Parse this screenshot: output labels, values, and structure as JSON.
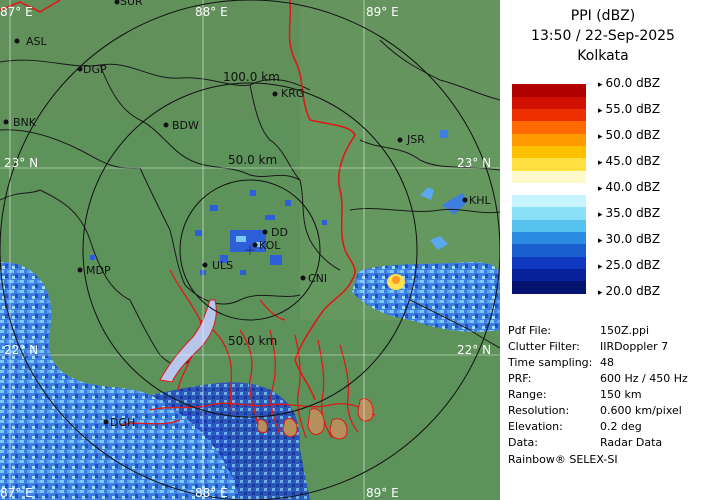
{
  "panel": {
    "title_line1": "PPI (dBZ)",
    "title_line2": "13:50 / 22-Sep-2025",
    "title_line3": "Kolkata"
  },
  "legend": {
    "labels": [
      "60.0 dBZ",
      "55.0 dBZ",
      "50.0 dBZ",
      "45.0 dBZ",
      "40.0 dBZ",
      "35.0 dBZ",
      "30.0 dBZ",
      "25.0 dBZ",
      "20.0 dBZ"
    ],
    "colors": [
      "#ffffff",
      "#b00000",
      "#d01000",
      "#ee3000",
      "#ff6a00",
      "#ff9a00",
      "#ffc000",
      "#ffe040",
      "#fffacc",
      "#ffffff",
      "#c8f4ff",
      "#8ae0f8",
      "#55c2f0",
      "#2a8ce0",
      "#1a5ed0",
      "#1038c0",
      "#08209a",
      "#061470",
      "#ffffff"
    ]
  },
  "info": [
    {
      "key": "Pdf File:",
      "value": "150Z.ppi"
    },
    {
      "key": "Clutter Filter:",
      "value": "IIRDoppler 7"
    },
    {
      "key": "Time sampling:",
      "value": "48"
    },
    {
      "key": "PRF:",
      "value": "600 Hz / 450 Hz"
    },
    {
      "key": "Range:",
      "value": "150 km"
    },
    {
      "key": "Resolution:",
      "value": "0.600 km/pixel"
    },
    {
      "key": "Elevation:",
      "value": "0.2 deg"
    },
    {
      "key": "Data:",
      "value": "Radar Data"
    }
  ],
  "footer": "Rainbow® SELEX-SI",
  "map": {
    "grid_labels": {
      "lon_87_top": "87° E",
      "lon_88_top": "88° E",
      "lon_89_top": "89° E",
      "lon_87_bottom": "87° E",
      "lon_88_bottom": "88° E",
      "lon_89_bottom": "89° E",
      "lat_23_left": "23° N",
      "lat_23_right": "23° N",
      "lat_22_left": "22° N",
      "lat_22_right": "22° N"
    },
    "range_labels": {
      "r100": "100.0 km",
      "r50": "50.0 km",
      "r50_bottom": "50.0 km"
    },
    "cities": {
      "sur": "SUR",
      "asl": "ASL",
      "dgp": "DGP",
      "krg": "KRG",
      "bnk": "BNK",
      "bdw": "BDW",
      "jsr": "JSR",
      "khl": "KHL",
      "dd": "DD",
      "kol": "KOL",
      "uls": "ULS",
      "cni": "CNI",
      "mdp": "MDP",
      "dgh": "DGH"
    }
  }
}
